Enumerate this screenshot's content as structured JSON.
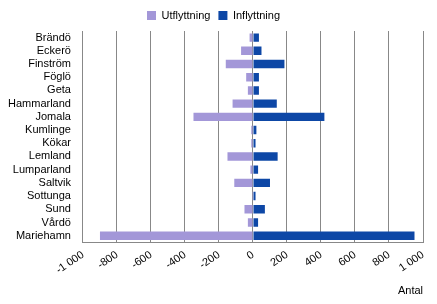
{
  "chart_data": {
    "type": "bar",
    "orientation": "horizontal",
    "stacked": true,
    "x_label": "Antal",
    "categories": [
      "Brändö",
      "Eckerö",
      "Finström",
      "Föglö",
      "Geta",
      "Hammarland",
      "Jomala",
      "Kumlinge",
      "Kökar",
      "Lemland",
      "Lumparland",
      "Saltvik",
      "Sottunga",
      "Sund",
      "Vårdö",
      "Mariehamn"
    ],
    "series": [
      {
        "name": "Utflyttning",
        "color": "#a397d8",
        "values": [
          -20,
          -70,
          -160,
          -40,
          -30,
          -120,
          -350,
          -10,
          -10,
          -150,
          -15,
          -110,
          -5,
          -50,
          -30,
          -900
        ]
      },
      {
        "name": "Inflyttning",
        "color": "#0d47a6",
        "values": [
          35,
          50,
          185,
          35,
          35,
          140,
          420,
          20,
          15,
          145,
          30,
          100,
          15,
          70,
          30,
          950
        ]
      }
    ],
    "xlim": [
      -1000,
      1000
    ],
    "xticks": [
      {
        "value": -1000,
        "label": "-1 000"
      },
      -800,
      -600,
      -400,
      -200,
      0,
      200,
      400,
      600,
      800,
      {
        "value": 1000,
        "label": "1 000"
      }
    ],
    "grid": true,
    "legend": "top"
  }
}
